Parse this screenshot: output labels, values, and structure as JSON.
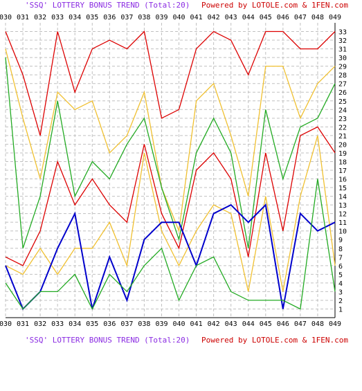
{
  "header": {
    "title_quoted": "'SSQ' LOTTERY BONUS TREND (Total:20)",
    "powered": "Powered by LOTOLE.com & 1FEN.com"
  },
  "footer": {
    "title_quoted": "'SSQ' LOTTERY BONUS TREND (Total:20)",
    "powered": "Powered by LOTOLE.com & 1FEN.com"
  },
  "colors": {
    "title": "#8a2be2",
    "powered": "#cc0000",
    "grid": "#c0c0c0",
    "axis": "#000000"
  },
  "chart_data": {
    "type": "line",
    "x": [
      "030",
      "031",
      "032",
      "033",
      "034",
      "035",
      "036",
      "037",
      "038",
      "039",
      "040",
      "041",
      "042",
      "043",
      "044",
      "045",
      "046",
      "047",
      "048",
      "049"
    ],
    "y_ticks": [
      1,
      2,
      3,
      4,
      5,
      6,
      7,
      8,
      9,
      10,
      11,
      12,
      13,
      14,
      15,
      16,
      17,
      18,
      19,
      20,
      21,
      22,
      23,
      24,
      25,
      26,
      27,
      28,
      29,
      30,
      31,
      32,
      33
    ],
    "ylim": [
      0,
      34
    ],
    "grid": true,
    "series": [
      {
        "color": "#dd0000",
        "values": [
          33,
          28,
          21,
          33,
          26,
          31,
          32,
          31,
          33,
          23,
          24,
          31,
          33,
          32,
          28,
          33,
          33,
          31,
          31,
          33
        ]
      },
      {
        "color": "#f0c030",
        "values": [
          31,
          23,
          16,
          26,
          24,
          25,
          19,
          21,
          26,
          15,
          10,
          25,
          27,
          21,
          14,
          29,
          29,
          23,
          27,
          29
        ]
      },
      {
        "color": "#22aa22",
        "values": [
          30,
          8,
          14,
          25,
          14,
          18,
          16,
          20,
          23,
          15,
          9,
          19,
          23,
          19,
          8,
          24,
          16,
          22,
          23,
          27
        ]
      },
      {
        "color": "#dd0000",
        "values": [
          7,
          6,
          10,
          18,
          13,
          16,
          13,
          11,
          20,
          12,
          8,
          17,
          19,
          16,
          7,
          19,
          10,
          21,
          22,
          19
        ]
      },
      {
        "color": "#f0c030",
        "values": [
          6,
          5,
          8,
          5,
          8,
          8,
          11,
          6,
          19,
          10,
          6,
          10,
          13,
          12,
          3,
          14,
          3,
          14,
          21,
          6
        ]
      },
      {
        "color": "#0000cc",
        "values": [
          6,
          1,
          3,
          8,
          12,
          1,
          7,
          2,
          9,
          11,
          11,
          6,
          12,
          13,
          11,
          13,
          1,
          12,
          10,
          11
        ]
      },
      {
        "color": "#22aa22",
        "values": [
          4,
          1,
          3,
          3,
          5,
          1,
          5,
          3,
          6,
          8,
          2,
          6,
          7,
          3,
          2,
          2,
          2,
          1,
          16,
          3
        ]
      }
    ]
  }
}
